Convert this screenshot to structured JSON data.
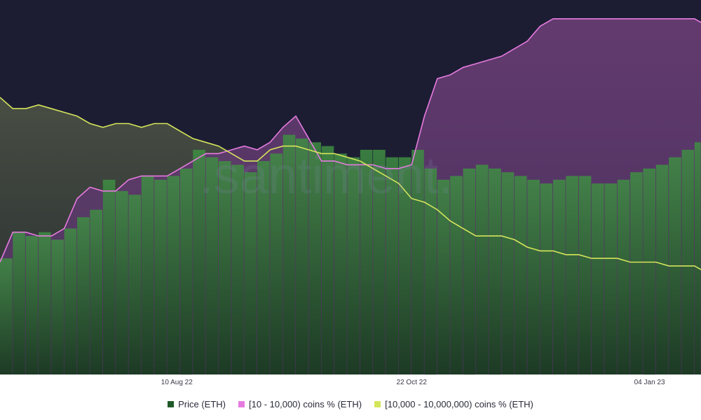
{
  "colors": {
    "background": "#1c1d33",
    "panel_bottom": "#ffffff",
    "price": "#1e5a27",
    "price_bright": "#2f8a3a",
    "small_holders": "#e67bdf",
    "small_fill": "#5a3b6a",
    "large_holders": "#d5e55b",
    "large_fill": "#3c4238",
    "watermark": "#8a8fb8",
    "axis_text": "#3a3a4a"
  },
  "watermark": ".santiment.",
  "legend": {
    "items": [
      {
        "label": "Price (ETH)",
        "color": "#1e5a27"
      },
      {
        "label": "[10 - 10,000) coins % (ETH)",
        "color": "#e67bdf"
      },
      {
        "label": "[10,000 - 10,000,000) coins % (ETH)",
        "color": "#d5e55b"
      }
    ]
  },
  "chart_data": {
    "type": "area",
    "title": "",
    "xlabel": "",
    "ylabel": "",
    "x_ticks": [
      "10 Aug 22",
      "22 Oct 22",
      "04 Jan 23"
    ],
    "x_start": "2022-06-16",
    "x_end": "2023-01-20",
    "legend_position": "bottom",
    "grid": false,
    "series": [
      {
        "name": "Price (ETH)",
        "type": "bar",
        "color": "#1e5a27",
        "x": [
          "2022-06-16",
          "2022-06-20",
          "2022-06-24",
          "2022-06-28",
          "2022-07-02",
          "2022-07-06",
          "2022-07-10",
          "2022-07-14",
          "2022-07-18",
          "2022-07-22",
          "2022-07-26",
          "2022-07-30",
          "2022-08-03",
          "2022-08-07",
          "2022-08-11",
          "2022-08-15",
          "2022-08-19",
          "2022-08-23",
          "2022-08-27",
          "2022-08-31",
          "2022-09-04",
          "2022-09-08",
          "2022-09-12",
          "2022-09-16",
          "2022-09-20",
          "2022-09-24",
          "2022-09-28",
          "2022-10-02",
          "2022-10-06",
          "2022-10-10",
          "2022-10-14",
          "2022-10-18",
          "2022-10-22",
          "2022-10-26",
          "2022-10-30",
          "2022-11-03",
          "2022-11-07",
          "2022-11-11",
          "2022-11-15",
          "2022-11-19",
          "2022-11-23",
          "2022-11-27",
          "2022-12-01",
          "2022-12-05",
          "2022-12-09",
          "2022-12-13",
          "2022-12-17",
          "2022-12-21",
          "2022-12-25",
          "2022-12-29",
          "2023-01-02",
          "2023-01-06",
          "2023-01-10",
          "2023-01-14",
          "2023-01-18",
          "2023-01-20"
        ],
        "values": [
          31,
          38,
          37,
          38,
          36,
          39,
          42,
          44,
          52,
          49,
          48,
          53,
          52,
          53,
          55,
          60,
          58,
          57,
          56,
          54,
          57,
          59,
          64,
          63,
          62,
          61,
          59,
          58,
          60,
          60,
          58,
          58,
          60,
          55,
          52,
          53,
          55,
          56,
          55,
          54,
          53,
          52,
          51,
          52,
          53,
          53,
          51,
          51,
          52,
          54,
          55,
          56,
          58,
          60,
          62,
          63
        ]
      },
      {
        "name": "[10 - 10,000) coins % (ETH)",
        "type": "line",
        "color": "#e67bdf",
        "x": [
          "2022-06-16",
          "2022-06-20",
          "2022-06-24",
          "2022-06-28",
          "2022-07-02",
          "2022-07-06",
          "2022-07-10",
          "2022-07-14",
          "2022-07-18",
          "2022-07-22",
          "2022-07-26",
          "2022-07-30",
          "2022-08-03",
          "2022-08-07",
          "2022-08-11",
          "2022-08-15",
          "2022-08-19",
          "2022-08-23",
          "2022-08-27",
          "2022-08-31",
          "2022-09-04",
          "2022-09-08",
          "2022-09-12",
          "2022-09-16",
          "2022-09-20",
          "2022-09-24",
          "2022-09-28",
          "2022-10-02",
          "2022-10-06",
          "2022-10-10",
          "2022-10-14",
          "2022-10-18",
          "2022-10-22",
          "2022-10-26",
          "2022-10-30",
          "2022-11-03",
          "2022-11-07",
          "2022-11-11",
          "2022-11-15",
          "2022-11-19",
          "2022-11-23",
          "2022-11-27",
          "2022-12-01",
          "2022-12-05",
          "2022-12-09",
          "2022-12-13",
          "2022-12-17",
          "2022-12-21",
          "2022-12-25",
          "2022-12-29",
          "2023-01-02",
          "2023-01-06",
          "2023-01-10",
          "2023-01-14",
          "2023-01-18",
          "2023-01-20"
        ],
        "values": [
          30,
          38,
          38,
          37,
          37,
          39,
          47,
          50,
          49,
          49,
          52,
          53,
          53,
          53,
          55,
          57,
          59,
          59,
          60,
          61,
          60,
          62,
          66,
          69,
          63,
          57,
          57,
          56,
          56,
          56,
          55,
          55,
          56,
          69,
          79,
          80,
          82,
          83,
          84,
          85,
          87,
          89,
          93,
          95,
          95,
          95,
          95,
          95,
          95,
          95,
          95,
          95,
          95,
          95,
          95,
          94
        ]
      },
      {
        "name": "[10,000 - 10,000,000) coins % (ETH)",
        "type": "line",
        "color": "#d5e55b",
        "x": [
          "2022-06-16",
          "2022-06-20",
          "2022-06-24",
          "2022-06-28",
          "2022-07-02",
          "2022-07-06",
          "2022-07-10",
          "2022-07-14",
          "2022-07-18",
          "2022-07-22",
          "2022-07-26",
          "2022-07-30",
          "2022-08-03",
          "2022-08-07",
          "2022-08-11",
          "2022-08-15",
          "2022-08-19",
          "2022-08-23",
          "2022-08-27",
          "2022-08-31",
          "2022-09-04",
          "2022-09-08",
          "2022-09-12",
          "2022-09-16",
          "2022-09-20",
          "2022-09-24",
          "2022-09-28",
          "2022-10-02",
          "2022-10-06",
          "2022-10-10",
          "2022-10-14",
          "2022-10-18",
          "2022-10-22",
          "2022-10-26",
          "2022-10-30",
          "2022-11-03",
          "2022-11-07",
          "2022-11-11",
          "2022-11-15",
          "2022-11-19",
          "2022-11-23",
          "2022-11-27",
          "2022-12-01",
          "2022-12-05",
          "2022-12-09",
          "2022-12-13",
          "2022-12-17",
          "2022-12-21",
          "2022-12-25",
          "2022-12-29",
          "2023-01-02",
          "2023-01-06",
          "2023-01-10",
          "2023-01-14",
          "2023-01-18",
          "2023-01-20"
        ],
        "values": [
          74,
          71,
          71,
          72,
          71,
          70,
          69,
          67,
          66,
          67,
          67,
          66,
          67,
          67,
          65,
          63,
          62,
          61,
          59,
          57,
          57,
          60,
          61,
          61,
          60,
          59,
          59,
          58,
          57,
          55,
          53,
          51,
          47,
          46,
          44,
          41,
          39,
          37,
          37,
          37,
          36,
          34,
          33,
          33,
          32,
          32,
          31,
          31,
          31,
          30,
          30,
          30,
          29,
          29,
          29,
          28
        ]
      }
    ]
  }
}
